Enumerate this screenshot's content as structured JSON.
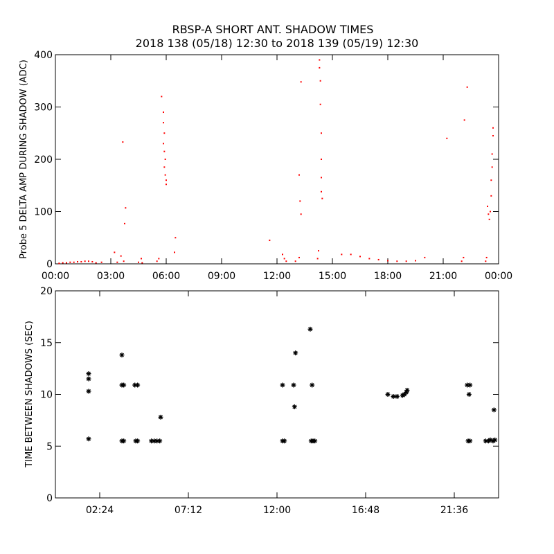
{
  "chart_data": [
    {
      "type": "scatter",
      "title": "RBSP-A SHORT ANT. SHADOW TIMES",
      "subtitle": "2018 138 (05/18) 12:30 to 2018 139 (05/19) 12:30",
      "xlabel": "",
      "ylabel": "Probe 5 DELTA AMP DURING SHADOW (ADC)",
      "xlim": [
        0,
        24
      ],
      "ylim": [
        0,
        400
      ],
      "x_ticks": [
        "00:00",
        "03:00",
        "06:00",
        "09:00",
        "12:00",
        "15:00",
        "18:00",
        "21:00",
        "00:00"
      ],
      "y_ticks": [
        "0",
        "100",
        "200",
        "300",
        "400"
      ],
      "marker_color": "#ff0000",
      "grid": false,
      "series": [
        {
          "points": [
            [
              0.2,
              1
            ],
            [
              0.4,
              2
            ],
            [
              0.6,
              2
            ],
            [
              0.8,
              3
            ],
            [
              1.0,
              3
            ],
            [
              1.2,
              4
            ],
            [
              1.4,
              4
            ],
            [
              1.6,
              5
            ],
            [
              1.8,
              5
            ],
            [
              2.0,
              4
            ],
            [
              2.2,
              2
            ],
            [
              2.5,
              3
            ],
            [
              3.2,
              22
            ],
            [
              3.35,
              3
            ],
            [
              3.55,
              15
            ],
            [
              3.7,
              5
            ],
            [
              3.65,
              233
            ],
            [
              3.8,
              107
            ],
            [
              3.75,
              77
            ],
            [
              4.5,
              3
            ],
            [
              4.65,
              10
            ],
            [
              4.7,
              2
            ],
            [
              5.5,
              5
            ],
            [
              5.6,
              10
            ],
            [
              5.75,
              320
            ],
            [
              5.85,
              290
            ],
            [
              5.85,
              270
            ],
            [
              5.9,
              250
            ],
            [
              5.85,
              230
            ],
            [
              5.9,
              215
            ],
            [
              5.95,
              200
            ],
            [
              5.9,
              185
            ],
            [
              5.95,
              170
            ],
            [
              6.0,
              152
            ],
            [
              6.0,
              160
            ],
            [
              6.45,
              22
            ],
            [
              6.5,
              50
            ],
            [
              11.6,
              45
            ],
            [
              12.3,
              18
            ],
            [
              12.4,
              10
            ],
            [
              12.5,
              5
            ],
            [
              13.0,
              5
            ],
            [
              13.2,
              12
            ],
            [
              13.2,
              170
            ],
            [
              13.25,
              120
            ],
            [
              13.3,
              95
            ],
            [
              13.3,
              348
            ],
            [
              14.2,
              10
            ],
            [
              14.25,
              25
            ],
            [
              14.3,
              390
            ],
            [
              14.3,
              375
            ],
            [
              14.35,
              350
            ],
            [
              14.35,
              305
            ],
            [
              14.4,
              250
            ],
            [
              14.4,
              200
            ],
            [
              14.4,
              165
            ],
            [
              14.4,
              138
            ],
            [
              14.45,
              125
            ],
            [
              15.5,
              18
            ],
            [
              16.0,
              18
            ],
            [
              16.5,
              14
            ],
            [
              17.0,
              10
            ],
            [
              17.5,
              8
            ],
            [
              18.0,
              6
            ],
            [
              18.5,
              5
            ],
            [
              19.0,
              5
            ],
            [
              19.5,
              6
            ],
            [
              20.0,
              12
            ],
            [
              21.2,
              240
            ],
            [
              22.0,
              5
            ],
            [
              22.1,
              12
            ],
            [
              22.15,
              275
            ],
            [
              22.3,
              338
            ],
            [
              23.3,
              5
            ],
            [
              23.35,
              12
            ],
            [
              23.4,
              110
            ],
            [
              23.45,
              95
            ],
            [
              23.5,
              85
            ],
            [
              23.55,
              100
            ],
            [
              23.6,
              130
            ],
            [
              23.6,
              160
            ],
            [
              23.65,
              185
            ],
            [
              23.65,
              210
            ],
            [
              23.7,
              245
            ],
            [
              23.7,
              260
            ]
          ]
        }
      ]
    },
    {
      "type": "scatter",
      "title": "",
      "xlabel": "",
      "ylabel": "TIME BETWEEN SHADOWS (SEC)",
      "xlim": [
        0,
        24
      ],
      "ylim": [
        0,
        20
      ],
      "x_ticks": [
        "02:24",
        "07:12",
        "12:00",
        "16:48",
        "21:36"
      ],
      "y_ticks": [
        "0",
        "5",
        "10",
        "15",
        "20"
      ],
      "marker": "asterisk",
      "marker_color": "#000000",
      "grid": false,
      "series": [
        {
          "points": [
            [
              1.8,
              12.0
            ],
            [
              1.8,
              11.5
            ],
            [
              1.8,
              10.3
            ],
            [
              1.8,
              5.7
            ],
            [
              3.6,
              13.8
            ],
            [
              3.6,
              10.9
            ],
            [
              3.7,
              10.9
            ],
            [
              3.6,
              5.5
            ],
            [
              3.7,
              5.5
            ],
            [
              4.3,
              10.9
            ],
            [
              4.45,
              10.9
            ],
            [
              4.35,
              5.5
            ],
            [
              4.45,
              5.5
            ],
            [
              5.2,
              5.5
            ],
            [
              5.35,
              5.5
            ],
            [
              5.5,
              5.5
            ],
            [
              5.65,
              5.5
            ],
            [
              5.7,
              7.8
            ],
            [
              12.3,
              10.9
            ],
            [
              12.3,
              5.5
            ],
            [
              12.4,
              5.5
            ],
            [
              12.9,
              10.9
            ],
            [
              13.0,
              14.0
            ],
            [
              12.95,
              8.8
            ],
            [
              13.8,
              16.3
            ],
            [
              13.9,
              10.9
            ],
            [
              13.85,
              5.5
            ],
            [
              13.95,
              5.5
            ],
            [
              14.05,
              5.5
            ],
            [
              18.0,
              10.0
            ],
            [
              18.3,
              9.8
            ],
            [
              18.5,
              9.8
            ],
            [
              18.8,
              9.9
            ],
            [
              18.9,
              10.0
            ],
            [
              19.0,
              10.2
            ],
            [
              19.05,
              10.4
            ],
            [
              22.3,
              10.9
            ],
            [
              22.45,
              10.9
            ],
            [
              22.4,
              10.0
            ],
            [
              22.35,
              5.5
            ],
            [
              22.45,
              5.5
            ],
            [
              23.3,
              5.5
            ],
            [
              23.45,
              5.5
            ],
            [
              23.55,
              5.6
            ],
            [
              23.7,
              5.5
            ],
            [
              23.75,
              8.5
            ],
            [
              23.8,
              5.6
            ]
          ]
        }
      ]
    }
  ]
}
